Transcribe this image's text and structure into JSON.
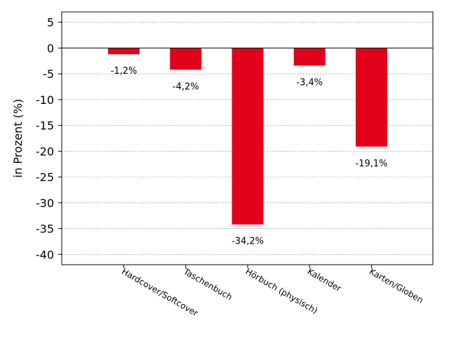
{
  "chart_data": {
    "type": "bar",
    "categories": [
      "Hardcover/Softcover",
      "Taschenbuch",
      "Hörbuch (physisch)",
      "Kalender",
      "Karten/Globen"
    ],
    "values": [
      -1.2,
      -4.2,
      -34.2,
      -3.4,
      -19.1
    ],
    "data_labels": [
      "-1,2%",
      "-4,2%",
      "-34,2%",
      "-3,4%",
      "-19,1%"
    ],
    "title": "",
    "xlabel": "",
    "ylabel": "in Prozent (%)",
    "ylim": [
      -42,
      7
    ],
    "yticks": [
      5,
      0,
      -5,
      -10,
      -15,
      -20,
      -25,
      -30,
      -35,
      -40
    ],
    "ytick_labels": [
      "5",
      "0",
      "-5",
      "-10",
      "-15",
      "-20",
      "-25",
      "-30",
      "-35",
      "-40"
    ],
    "grid": true,
    "bar_color": "#e3001b",
    "zero_line": true
  }
}
